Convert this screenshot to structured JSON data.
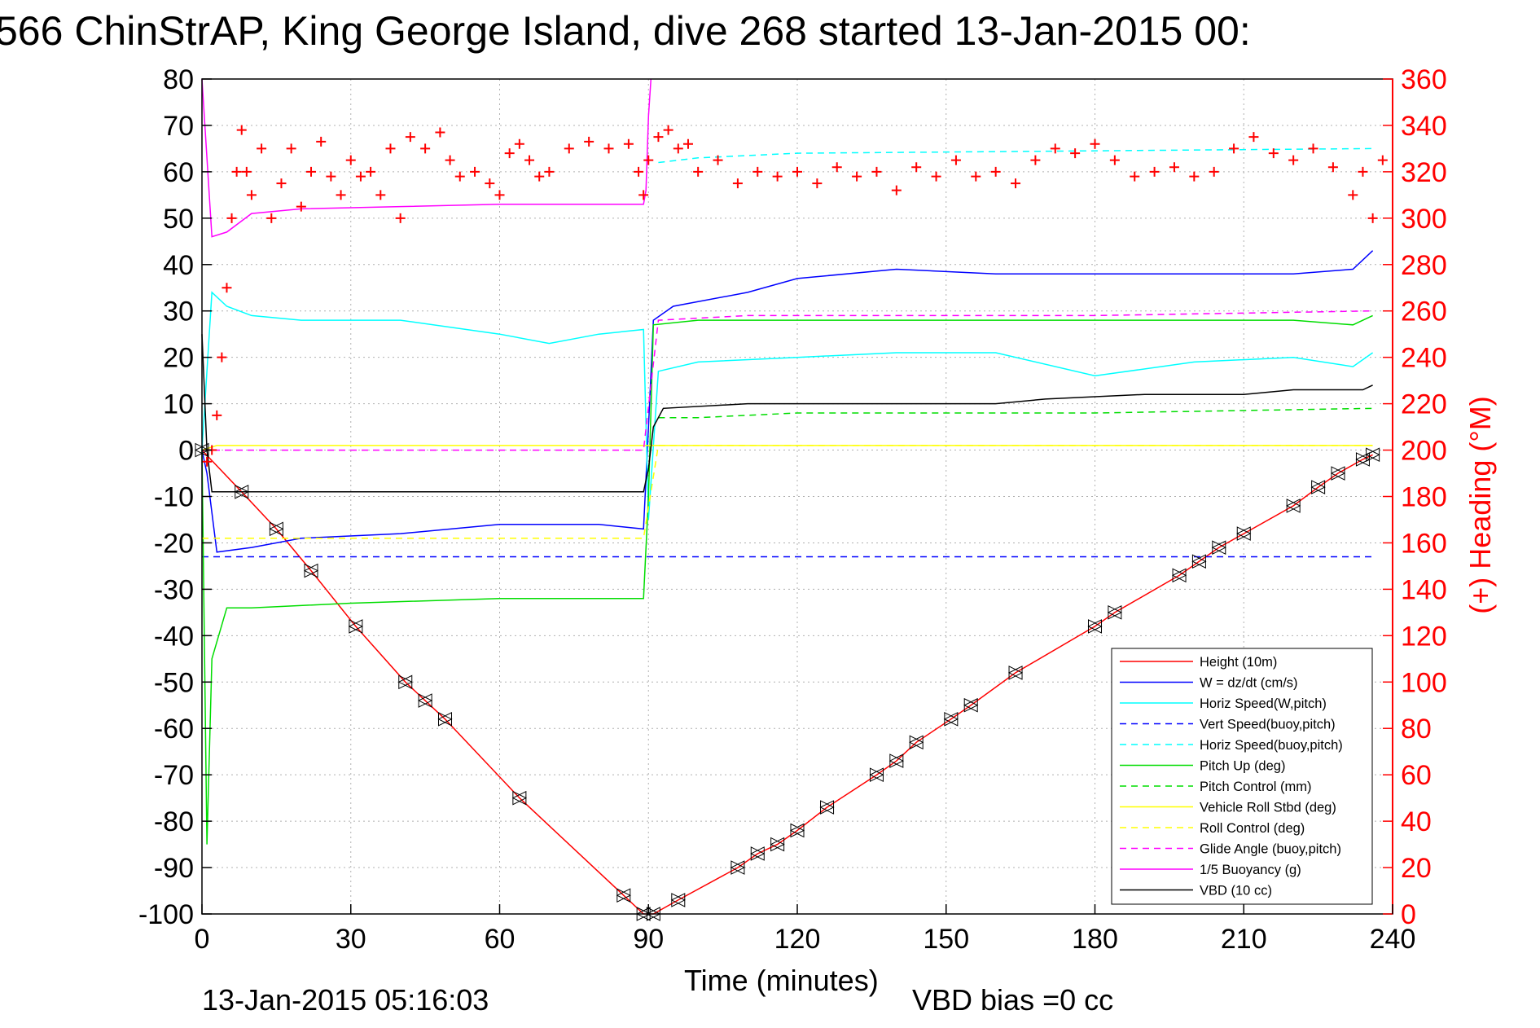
{
  "chart_data": {
    "type": "line",
    "title": "566 ChinStrAP, King George Island, dive 268 started 13-Jan-2015 00:",
    "xlabel": "Time (minutes)",
    "ylabel_right": "(+) Heading (°M)",
    "xlim": [
      0,
      240
    ],
    "ylim": [
      -100,
      80
    ],
    "ylim_right": [
      0,
      360
    ],
    "x_ticks": [
      "0",
      "30",
      "60",
      "90",
      "120",
      "150",
      "180",
      "210",
      "240"
    ],
    "y_ticks": [
      "80",
      "70",
      "60",
      "50",
      "40",
      "30",
      "20",
      "10",
      "0",
      "-10",
      "-20",
      "-30",
      "-40",
      "-50",
      "-60",
      "-70",
      "-80",
      "-90",
      "-100"
    ],
    "y_right_ticks": [
      "360",
      "340",
      "320",
      "300",
      "280",
      "260",
      "240",
      "220",
      "200",
      "180",
      "160",
      "140",
      "120",
      "100",
      "80",
      "60",
      "40",
      "20",
      "0"
    ],
    "grid": true,
    "legend_position": "bottom-right",
    "footer_date": "13-Jan-2015 05:16:03",
    "footer_note": "VBD bias =0 cc",
    "series": [
      {
        "name": "Height (10m)",
        "color": "#ff0000",
        "style": "solid",
        "x": [
          0,
          8,
          15,
          22,
          31,
          41,
          45,
          49,
          64,
          85,
          89,
          91,
          96,
          108,
          112,
          116,
          120,
          126,
          136,
          140,
          144,
          151,
          155,
          164,
          180,
          184,
          197,
          201,
          205,
          210,
          220,
          225,
          229,
          234,
          236
        ],
        "y": [
          0,
          -9,
          -17,
          -26,
          -38,
          -50,
          -54,
          -58,
          -75,
          -96,
          -100,
          -100,
          -97,
          -90,
          -87,
          -85,
          -82,
          -77,
          -70,
          -67,
          -63,
          -58,
          -55,
          -48,
          -38,
          -35,
          -27,
          -24,
          -21,
          -18,
          -12,
          -8,
          -5,
          -2,
          -1
        ]
      },
      {
        "name": "W = dz/dt (cm/s)",
        "color": "#0000ff",
        "style": "solid",
        "x": [
          0,
          1,
          3,
          10,
          20,
          40,
          60,
          80,
          89,
          90,
          91,
          95,
          110,
          120,
          140,
          160,
          180,
          200,
          220,
          232,
          236
        ],
        "y": [
          0,
          -5,
          -22,
          -21,
          -19,
          -18,
          -16,
          -16,
          -17,
          5,
          28,
          31,
          34,
          37,
          39,
          38,
          38,
          38,
          38,
          39,
          43
        ]
      },
      {
        "name": "Horiz Speed(W,pitch)",
        "color": "#00ffff",
        "style": "solid",
        "x": [
          0,
          2,
          5,
          10,
          20,
          40,
          60,
          70,
          80,
          89,
          90,
          92,
          100,
          120,
          140,
          160,
          180,
          200,
          220,
          232,
          236
        ],
        "y": [
          0,
          34,
          31,
          29,
          28,
          28,
          25,
          23,
          25,
          26,
          -15,
          17,
          19,
          20,
          21,
          21,
          16,
          19,
          20,
          18,
          21
        ]
      },
      {
        "name": "Vert Speed(buoy,pitch)",
        "color": "#0000ff",
        "style": "dashed",
        "x": [
          0,
          92,
          236
        ],
        "y": [
          -23,
          -23,
          -23
        ]
      },
      {
        "name": "Horiz Speed(buoy,pitch)",
        "color": "#00ffff",
        "style": "dashed",
        "x": [
          92,
          100,
          120,
          236
        ],
        "y": [
          62,
          63,
          64,
          65
        ]
      },
      {
        "name": "Pitch Up (deg)",
        "color": "#00dd00",
        "style": "solid",
        "x": [
          0,
          1,
          2,
          5,
          10,
          30,
          60,
          89,
          90,
          91,
          100,
          120,
          140,
          160,
          180,
          200,
          220,
          232,
          236
        ],
        "y": [
          0,
          -85,
          -45,
          -34,
          -34,
          -33,
          -32,
          -32,
          -10,
          27,
          28,
          28,
          28,
          28,
          28,
          28,
          28,
          27,
          29
        ]
      },
      {
        "name": "Pitch Control (mm)",
        "color": "#00dd00",
        "style": "dashed",
        "x": [
          92,
          100,
          120,
          180,
          236
        ],
        "y": [
          7,
          7,
          8,
          8,
          9
        ]
      },
      {
        "name": "Vehicle Roll Stbd (deg)",
        "color": "#ffff00",
        "style": "solid",
        "x": [
          0,
          3,
          10,
          30,
          60,
          89,
          92,
          120,
          180,
          236
        ],
        "y": [
          0,
          1,
          1,
          1,
          1,
          1,
          1,
          1,
          1,
          1
        ]
      },
      {
        "name": "Roll Control (deg)",
        "color": "#ffff00",
        "style": "dashed",
        "x": [
          0,
          89,
          92,
          236
        ],
        "y": [
          -19,
          -19,
          1,
          1
        ]
      },
      {
        "name": "Glide Angle (buoy,pitch)",
        "color": "#ff00ff",
        "style": "dashed",
        "x": [
          0,
          89,
          92,
          110,
          180,
          236
        ],
        "y": [
          0,
          0,
          28,
          29,
          29,
          30
        ]
      },
      {
        "name": "1/5 Buoyancy (g)",
        "color": "#ff00ff",
        "style": "solid",
        "x": [
          0,
          2,
          5,
          10,
          20,
          40,
          60,
          89,
          89.5,
          90,
          90.5
        ],
        "y": [
          80,
          46,
          47,
          51,
          52,
          52.5,
          53,
          53,
          56,
          72,
          80
        ]
      },
      {
        "name": "VBD (10 cc)",
        "color": "#000000",
        "style": "solid",
        "x": [
          0,
          1,
          2,
          89,
          90,
          91,
          93,
          110,
          140,
          160,
          170,
          190,
          210,
          220,
          234,
          236
        ],
        "y": [
          25,
          0,
          -9,
          -9,
          -4,
          5,
          9,
          10,
          10,
          10,
          11,
          12,
          12,
          13,
          13,
          14
        ]
      },
      {
        "name": "Heading",
        "color": "#ff0000",
        "style": "plus-markers",
        "axis": "right",
        "x": [
          1,
          2,
          3,
          4,
          5,
          6,
          7,
          8,
          9,
          10,
          12,
          14,
          16,
          18,
          20,
          22,
          24,
          26,
          28,
          30,
          32,
          34,
          36,
          38,
          40,
          42,
          45,
          48,
          50,
          52,
          55,
          58,
          60,
          62,
          64,
          66,
          68,
          70,
          74,
          78,
          82,
          86,
          88,
          89,
          90,
          92,
          94,
          96,
          98,
          100,
          104,
          108,
          112,
          116,
          120,
          124,
          128,
          132,
          136,
          140,
          144,
          148,
          152,
          156,
          160,
          164,
          168,
          172,
          176,
          180,
          184,
          188,
          192,
          196,
          200,
          204,
          208,
          212,
          216,
          220,
          224,
          228,
          232,
          234,
          236,
          238
        ],
        "y": [
          195,
          200,
          215,
          240,
          270,
          300,
          320,
          338,
          320,
          310,
          330,
          300,
          315,
          330,
          305,
          320,
          333,
          318,
          310,
          325,
          318,
          320,
          310,
          330,
          300,
          335,
          330,
          337,
          325,
          318,
          320,
          315,
          310,
          328,
          332,
          325,
          318,
          320,
          330,
          333,
          330,
          332,
          320,
          310,
          325,
          335,
          338,
          330,
          332,
          320,
          325,
          315,
          320,
          318,
          320,
          315,
          322,
          318,
          320,
          312,
          322,
          318,
          325,
          318,
          320,
          315,
          325,
          330,
          328,
          332,
          325,
          318,
          320,
          322,
          318,
          320,
          330,
          335,
          328,
          325,
          330,
          322,
          310,
          320,
          300,
          325
        ]
      }
    ]
  }
}
